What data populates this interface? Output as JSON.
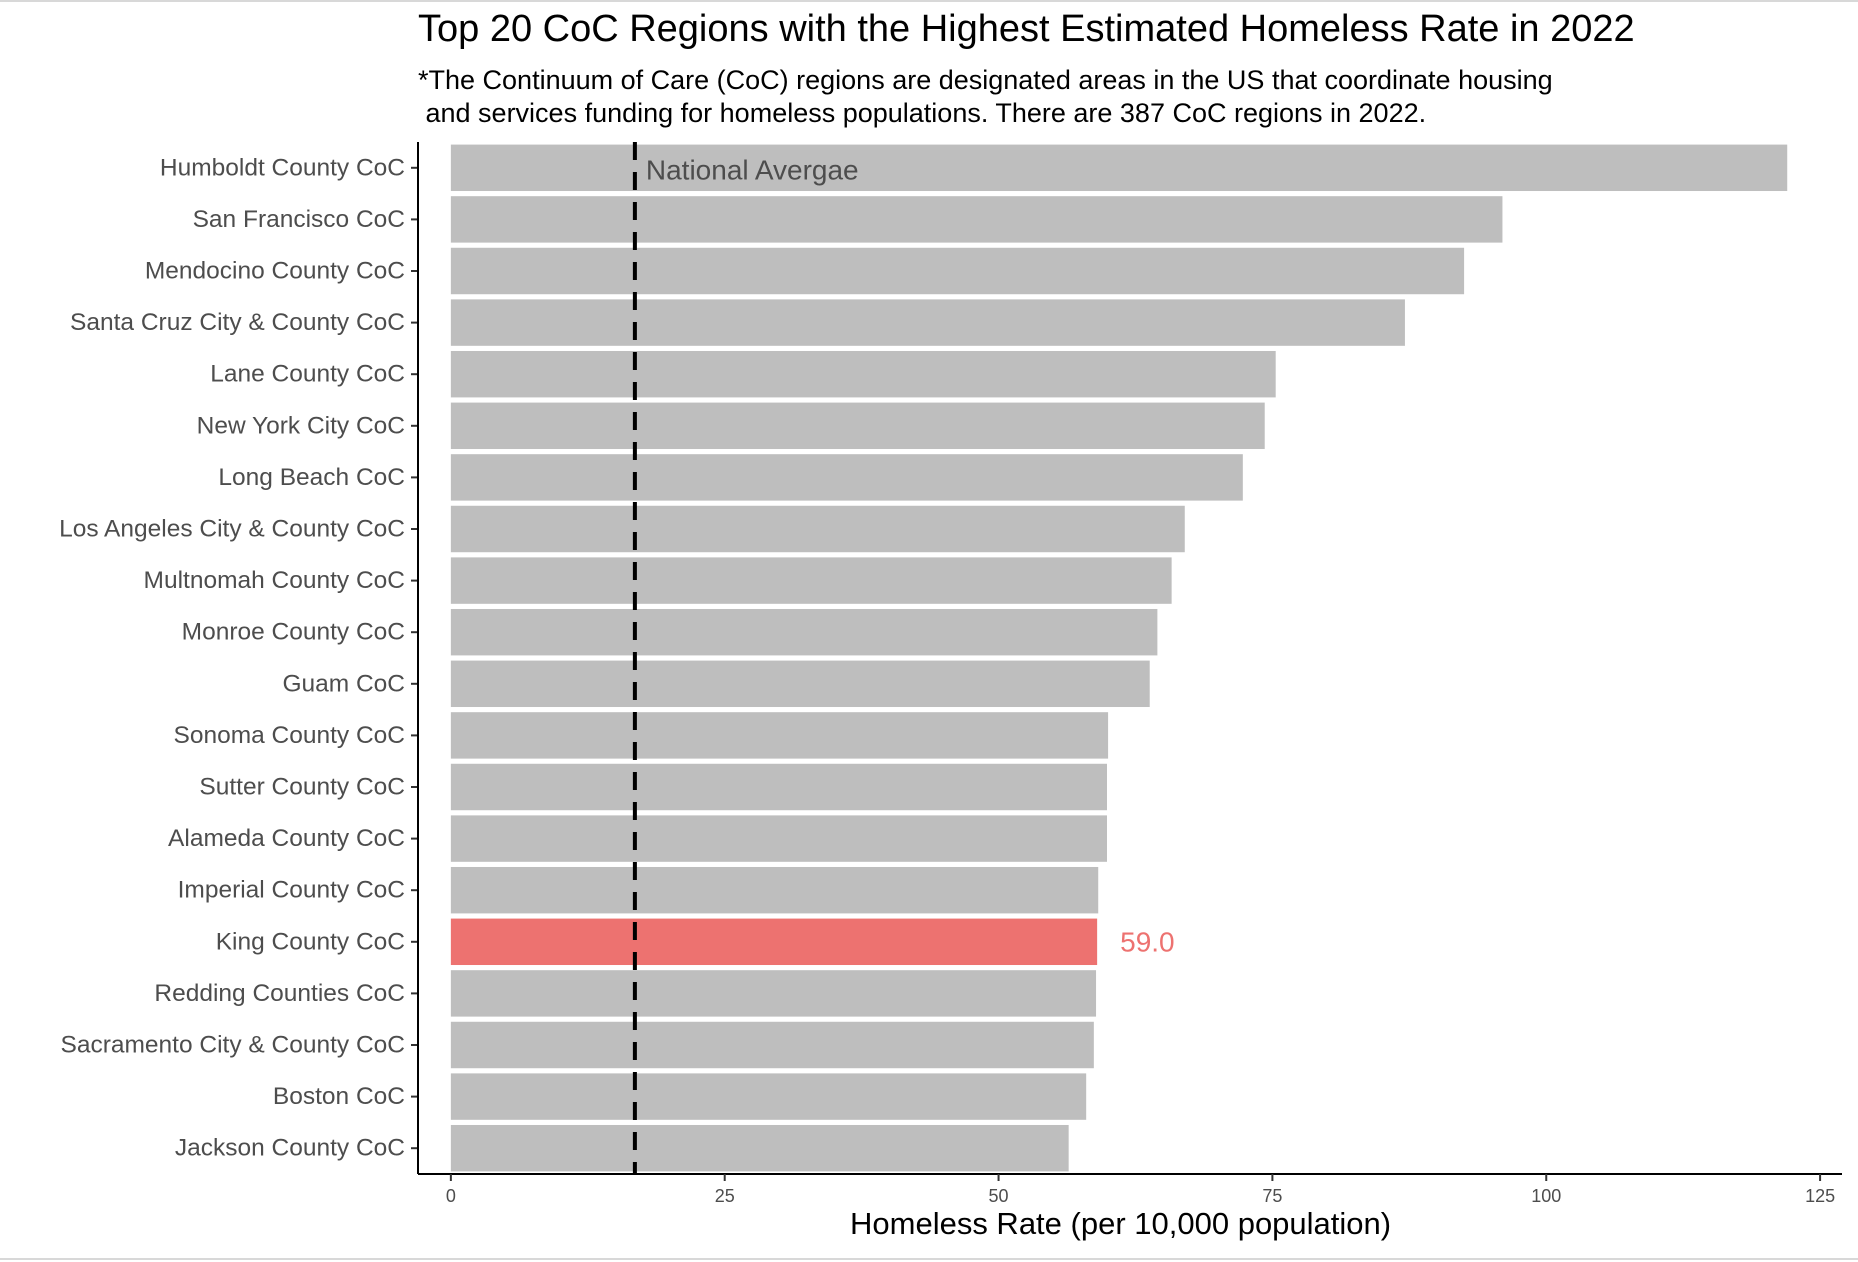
{
  "chart_data": {
    "type": "bar",
    "orientation": "horizontal",
    "title": "Top 20 CoC Regions with the Highest Estimated Homeless Rate in 2022",
    "subtitle": [
      "*The Continuum of Care (CoC) regions are designated areas in the US that coordinate housing",
      " and services funding for homeless populations. There are 387 CoC regions in 2022."
    ],
    "xlabel": "Homeless Rate (per 10,000 population)",
    "ylabel": "",
    "xlim": [
      -3,
      127
    ],
    "xticks": [
      0,
      25,
      50,
      75,
      100,
      125
    ],
    "grid": false,
    "legend": "none",
    "categories": [
      "Humboldt County CoC",
      "San Francisco CoC",
      "Mendocino County CoC",
      "Santa Cruz City & County CoC",
      "Lane County CoC",
      "New York City CoC",
      "Long Beach CoC",
      "Los Angeles City & County CoC",
      "Multnomah County CoC",
      "Monroe County CoC",
      "Guam CoC",
      "Sonoma County CoC",
      "Sutter County CoC",
      "Alameda County CoC",
      "Imperial County CoC",
      "King County CoC",
      "Redding Counties CoC",
      "Sacramento City & County CoC",
      "Boston CoC",
      "Jackson County CoC"
    ],
    "values": [
      122.0,
      96.0,
      92.5,
      87.1,
      75.3,
      74.3,
      72.3,
      67.0,
      65.8,
      64.5,
      63.8,
      60.0,
      59.9,
      59.9,
      59.1,
      59.0,
      58.9,
      58.7,
      58.0,
      56.4
    ],
    "highlight": {
      "category": "King County CoC",
      "label": "59.0",
      "color": "#ed7270"
    },
    "reference_line": {
      "x": 16.8,
      "label": "National Avergae",
      "style": "dashed",
      "color": "#000000"
    },
    "bar_color": "#bebebe"
  }
}
